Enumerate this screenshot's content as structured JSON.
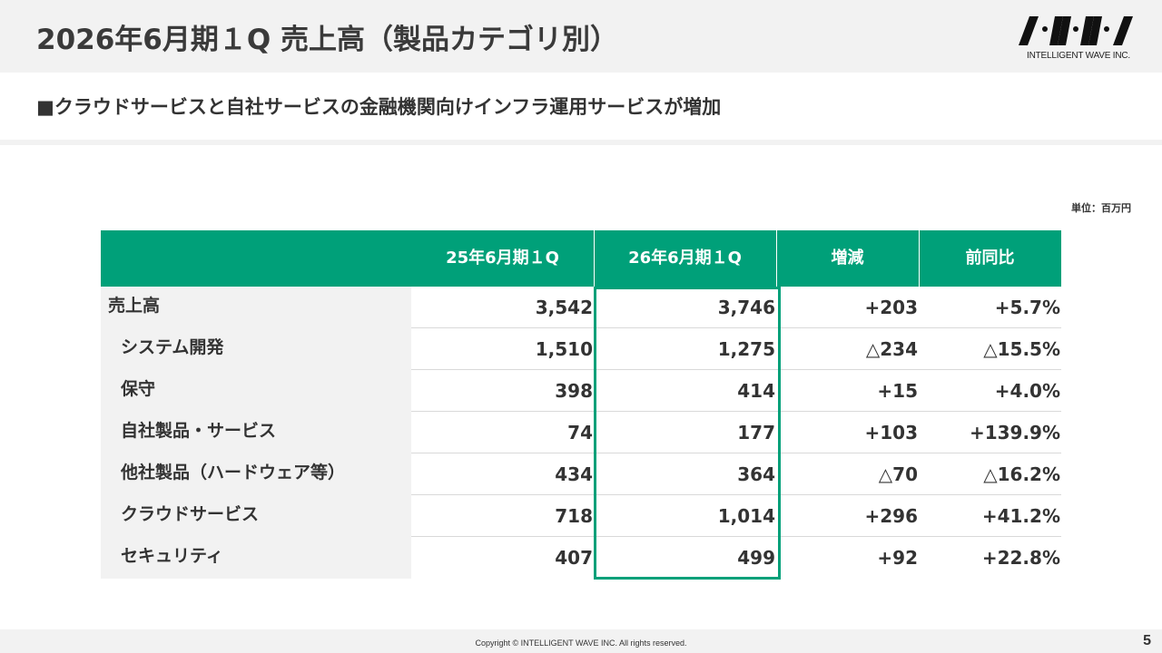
{
  "header": {
    "title": "2026年6月期１Q 売上高（製品カテゴリ別）",
    "logo_text": "INTELLIGENT WAVE INC."
  },
  "subtitle": "■クラウドサービスと自社サービスの金融機関向けインフラ運用サービスが増加",
  "unit": "単位：百万円",
  "table": {
    "columns": [
      "",
      "25年6月期１Q",
      "26年6月期１Q",
      "増減",
      "前同比"
    ],
    "rows": [
      {
        "label": "売上高",
        "prev": "3,542",
        "curr": "3,746",
        "diff": "+203",
        "ratio": "+5.7%"
      },
      {
        "label": "システム開発",
        "prev": "1,510",
        "curr": "1,275",
        "diff": "△234",
        "ratio": "△15.5%"
      },
      {
        "label": "保守",
        "prev": "398",
        "curr": "414",
        "diff": "+15",
        "ratio": "+4.0%"
      },
      {
        "label": "自社製品・サービス",
        "prev": "74",
        "curr": "177",
        "diff": "+103",
        "ratio": "+139.9%"
      },
      {
        "label": "他社製品（ハードウェア等）",
        "prev": "434",
        "curr": "364",
        "diff": "△70",
        "ratio": "△16.2%"
      },
      {
        "label": "クラウドサービス",
        "prev": "718",
        "curr": "1,014",
        "diff": "+296",
        "ratio": "+41.2%"
      },
      {
        "label": "セキュリティ",
        "prev": "407",
        "curr": "499",
        "diff": "+92",
        "ratio": "+22.8%"
      }
    ]
  },
  "footer": {
    "copyright": "Copyright © INTELLIGENT WAVE INC. All rights reserved.",
    "page": "5"
  },
  "colors": {
    "accent": "#00a079",
    "band": "#f2f2f2"
  },
  "icons": {
    "logo": "iwi-logo-mark"
  }
}
